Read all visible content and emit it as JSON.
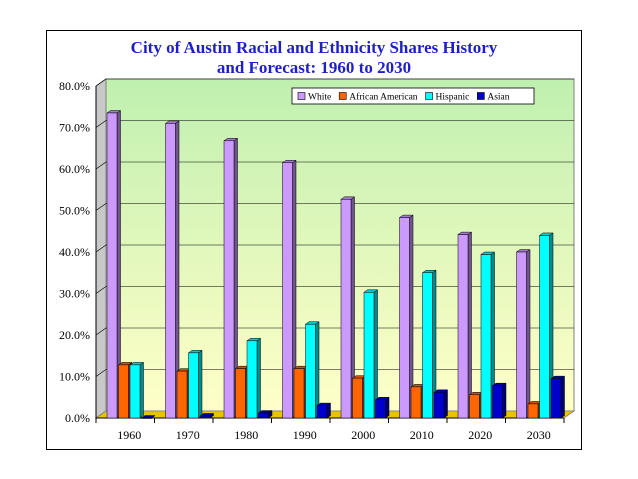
{
  "chart_data": {
    "type": "bar",
    "title_lines": [
      "City of Austin Racial and Ethnicity Shares History",
      "and Forecast: 1960 to 2030"
    ],
    "categories": [
      "1960",
      "1970",
      "1980",
      "1990",
      "2000",
      "2010",
      "2020",
      "2030"
    ],
    "series": [
      {
        "name": "White",
        "color": "#cc99ff",
        "values": [
          73.5,
          71.0,
          66.8,
          61.5,
          52.7,
          48.3,
          44.2,
          40.0
        ]
      },
      {
        "name": "African American",
        "color": "#ff6600",
        "values": [
          12.8,
          11.3,
          11.9,
          11.9,
          9.6,
          7.5,
          5.6,
          3.4
        ]
      },
      {
        "name": "Hispanic",
        "color": "#00ffff",
        "values": [
          12.8,
          15.7,
          18.6,
          22.6,
          30.3,
          35.0,
          39.4,
          44.0
        ]
      },
      {
        "name": "Asian",
        "color": "#0000cc",
        "values": [
          0.0,
          0.5,
          1.2,
          3.0,
          4.4,
          6.2,
          7.8,
          9.5
        ]
      }
    ],
    "y_ticks": [
      "0.0%",
      "10.0%",
      "20.0%",
      "30.0%",
      "40.0%",
      "50.0%",
      "60.0%",
      "70.0%",
      "80.0%"
    ],
    "ylim": [
      0,
      80
    ],
    "xlabel": "",
    "ylabel": "",
    "legend_position": "top-right",
    "grid": true
  }
}
